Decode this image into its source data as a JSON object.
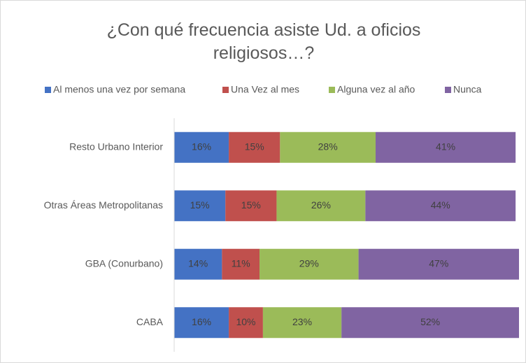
{
  "chart_data": {
    "type": "stacked-barh",
    "title": "¿Con qué frecuencia asiste Ud. a oficios religiosos…?",
    "categories": [
      "Resto Urbano Interior",
      "Otras Áreas Metropolitanas",
      "GBA (Conurbano)",
      "CABA"
    ],
    "series": [
      {
        "name": "Al menos una vez por semana",
        "color": "#4472c4",
        "values": [
          16,
          15,
          14,
          16
        ],
        "value_labels": [
          "16%",
          "15%",
          "14%",
          "16%"
        ]
      },
      {
        "name": "Una Vez al mes",
        "color": "#c0504d",
        "values": [
          15,
          15,
          11,
          10
        ],
        "value_labels": [
          "15%",
          "15%",
          "11%",
          "10%"
        ]
      },
      {
        "name": "Alguna vez al año",
        "color": "#9bbb59",
        "values": [
          28,
          26,
          29,
          23
        ],
        "value_labels": [
          "28%",
          "26%",
          "29%",
          "23%"
        ]
      },
      {
        "name": "Nunca",
        "color": "#8064a2",
        "values": [
          41,
          44,
          47,
          52
        ],
        "value_labels": [
          "41%",
          "44%",
          "47%",
          "52%"
        ]
      }
    ],
    "legend": "top"
  }
}
